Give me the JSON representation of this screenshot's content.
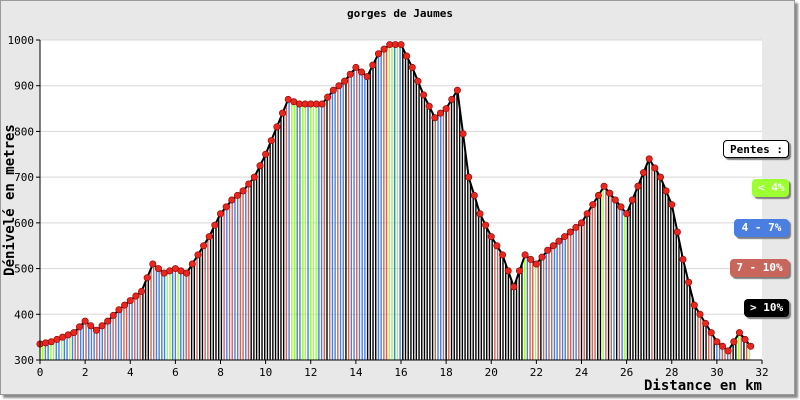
{
  "chart_data": {
    "type": "area",
    "title": "gorges de Jaumes",
    "xlabel": "Distance en km",
    "ylabel": "Dénivelé en metres",
    "xlim": [
      0,
      32
    ],
    "ylim": [
      300,
      1000
    ],
    "xticks": [
      "0",
      "2",
      "4",
      "6",
      "8",
      "10",
      "12",
      "14",
      "16",
      "18",
      "20",
      "22",
      "24",
      "26",
      "28",
      "30",
      "32"
    ],
    "yticks": [
      "300",
      "400",
      "500",
      "600",
      "700",
      "800",
      "900",
      "1000"
    ],
    "grid": "horizontal",
    "legend": {
      "title": "Pentes :",
      "placement": "right",
      "items": [
        {
          "label": "< 4%",
          "color": "#9cff33"
        },
        {
          "label": "4 - 7%",
          "color": "#4a7ee0"
        },
        {
          "label": "7 - 10%",
          "color": "#c8665c"
        },
        {
          "label": "> 10%",
          "color": "#000000"
        }
      ]
    },
    "series": [
      {
        "x": [
          0,
          0.5,
          1,
          1.5,
          2,
          2.5,
          3,
          3.5,
          4,
          4.5,
          5,
          5.5,
          6,
          6.5,
          7,
          7.5,
          8,
          8.5,
          9,
          9.5,
          10,
          10.5,
          11,
          11.5,
          12,
          12.5,
          13,
          13.5,
          14,
          14.5,
          15,
          15.5,
          16,
          16.5,
          17,
          17.5,
          18,
          18.5,
          19,
          19.5,
          20,
          20.5,
          21,
          21.5,
          22,
          22.5,
          23,
          23.5,
          24,
          24.5,
          25,
          25.5,
          26,
          26.5,
          27,
          27.5,
          28,
          28.5,
          29,
          29.5,
          30,
          30.5,
          31,
          31.5
        ],
        "y": [
          335,
          340,
          350,
          360,
          385,
          365,
          385,
          410,
          430,
          450,
          510,
          490,
          500,
          490,
          530,
          570,
          620,
          650,
          670,
          700,
          750,
          810,
          870,
          860,
          860,
          860,
          890,
          910,
          940,
          920,
          970,
          990,
          990,
          940,
          880,
          830,
          850,
          890,
          700,
          620,
          570,
          530,
          460,
          530,
          510,
          540,
          560,
          580,
          600,
          640,
          680,
          650,
          620,
          680,
          740,
          700,
          640,
          520,
          420,
          380,
          340,
          320,
          360,
          330
        ]
      }
    ]
  }
}
